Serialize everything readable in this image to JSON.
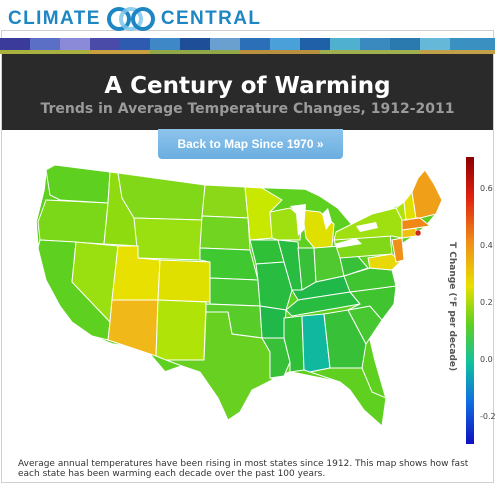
{
  "brand": {
    "name_left": "CLIMATE",
    "name_right": "CENTRAL",
    "color": "#1f86c4"
  },
  "header": {
    "title": "A Century of Warming",
    "subtitle": "Trends in Average Temperature Changes, 1912-2011"
  },
  "back_button": {
    "label": "Back to Map Since 1970 »"
  },
  "colorbar": {
    "label": "T Change (°F per decade)",
    "ticks": [
      "0.6",
      "0.4",
      "0.2",
      "0.0",
      "-0.2"
    ],
    "range": [
      -0.3,
      0.7
    ]
  },
  "caption": "Average annual temperatures have been rising in most states since 1912. This map shows how fast each state has been warming each decade over the past 100 years."
}
